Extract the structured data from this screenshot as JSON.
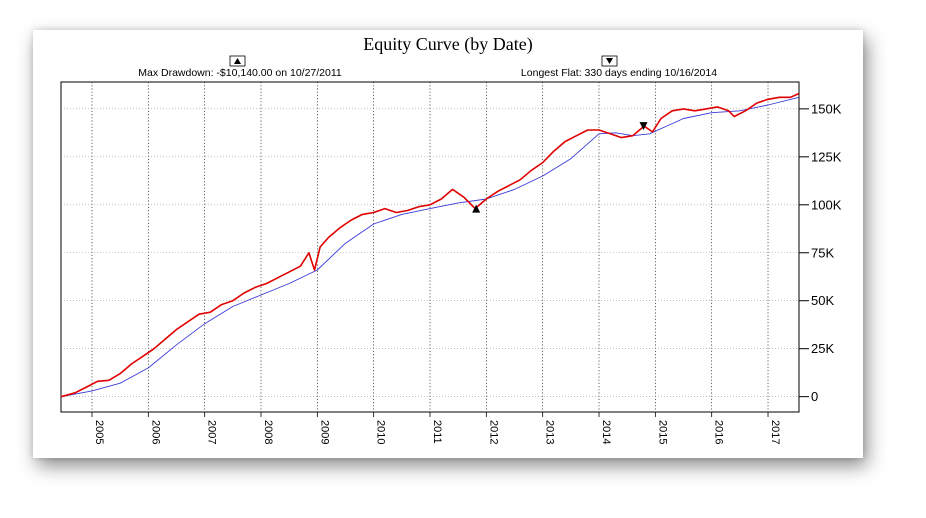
{
  "chart_data": {
    "type": "line",
    "title": "Equity Curve (by Date)",
    "annotations": {
      "max_drawdown": "Max Drawdown: -$10,140.00 on 10/27/2011",
      "longest_flat": "Longest Flat: 330 days ending 10/16/2014",
      "max_drawdown_marker": {
        "x": 2011.82,
        "y": 98000
      },
      "longest_flat_marker": {
        "x": 2014.79,
        "y": 141000
      }
    },
    "xlabel": "",
    "ylabel": "",
    "xlim": [
      2004.45,
      2017.55
    ],
    "ylim": [
      -8000,
      164000
    ],
    "x_ticks": [
      "2005",
      "2006",
      "2007",
      "2008",
      "2009",
      "2010",
      "2011",
      "2012",
      "2013",
      "2014",
      "2015",
      "2016",
      "2017"
    ],
    "x_tick_values": [
      2005,
      2006,
      2007,
      2008,
      2009,
      2010,
      2011,
      2012,
      2013,
      2014,
      2015,
      2016,
      2017
    ],
    "y_ticks": [
      "0",
      "25K",
      "50K",
      "75K",
      "100K",
      "125K",
      "150K"
    ],
    "y_tick_values": [
      0,
      25000,
      50000,
      75000,
      100000,
      125000,
      150000
    ],
    "grid": true,
    "legend": "none",
    "series": [
      {
        "color": "#e00000",
        "x": [
          2004.45,
          2004.7,
          2004.9,
          2005.1,
          2005.3,
          2005.5,
          2005.7,
          2005.9,
          2006.1,
          2006.3,
          2006.5,
          2006.7,
          2006.9,
          2007.1,
          2007.3,
          2007.5,
          2007.7,
          2007.9,
          2008.1,
          2008.3,
          2008.5,
          2008.7,
          2008.85,
          2008.95,
          2009.05,
          2009.2,
          2009.4,
          2009.6,
          2009.8,
          2010.0,
          2010.2,
          2010.4,
          2010.6,
          2010.8,
          2011.0,
          2011.2,
          2011.4,
          2011.5,
          2011.6,
          2011.8,
          2012.0,
          2012.2,
          2012.4,
          2012.6,
          2012.8,
          2013.0,
          2013.2,
          2013.4,
          2013.6,
          2013.8,
          2014.0,
          2014.2,
          2014.4,
          2014.6,
          2014.8,
          2014.95,
          2015.1,
          2015.3,
          2015.5,
          2015.7,
          2015.9,
          2016.1,
          2016.3,
          2016.4,
          2016.6,
          2016.8,
          2017.0,
          2017.2,
          2017.4,
          2017.55
        ],
        "y": [
          0,
          2000,
          5000,
          8000,
          8500,
          12000,
          17000,
          21000,
          25000,
          30000,
          35000,
          39000,
          43000,
          44000,
          48000,
          50000,
          54000,
          57000,
          59000,
          62000,
          65000,
          68000,
          75000,
          66000,
          78000,
          83000,
          88000,
          92000,
          95000,
          96000,
          98000,
          96000,
          97000,
          99000,
          100000,
          103000,
          108000,
          106000,
          104000,
          98000,
          103000,
          107000,
          110000,
          113000,
          118000,
          122000,
          128000,
          133000,
          136000,
          139000,
          139000,
          137000,
          135000,
          136000,
          141000,
          138000,
          145000,
          149000,
          150000,
          149000,
          150000,
          151000,
          149000,
          146000,
          149000,
          153000,
          155000,
          156000,
          156000,
          158000
        ]
      },
      {
        "color": "#3a3ad8",
        "x": [
          2004.45,
          2005.0,
          2005.5,
          2006.0,
          2006.5,
          2007.0,
          2007.5,
          2008.0,
          2008.5,
          2009.0,
          2009.5,
          2010.0,
          2010.5,
          2011.0,
          2011.5,
          2012.0,
          2012.5,
          2013.0,
          2013.5,
          2014.0,
          2014.3,
          2014.6,
          2014.9,
          2015.2,
          2015.5,
          2016.0,
          2016.5,
          2017.0,
          2017.55
        ],
        "y": [
          0,
          3000,
          7000,
          15000,
          27000,
          38000,
          47000,
          53000,
          59000,
          66000,
          80000,
          90000,
          95000,
          98000,
          101000,
          103000,
          108000,
          115000,
          124000,
          137000,
          137500,
          136000,
          137000,
          141000,
          145000,
          148000,
          149000,
          152000,
          156000
        ]
      }
    ]
  }
}
